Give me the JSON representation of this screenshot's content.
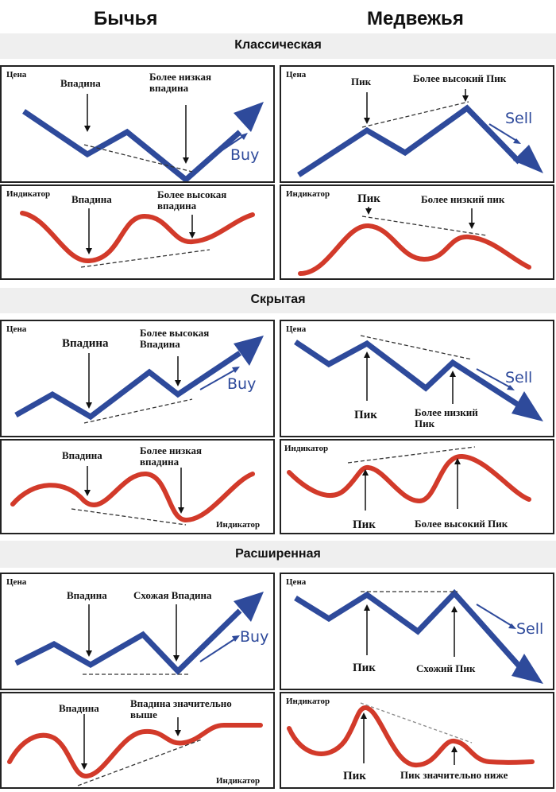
{
  "colors": {
    "price": "#2e4a9b",
    "indicator": "#d23a2a",
    "buy": "#2e4a9b",
    "sell": "#2e4a9b"
  },
  "columns": {
    "bull": "Бычья",
    "bear": "Медвежья"
  },
  "sections": {
    "classic": "Классическая",
    "hidden": "Скрытая",
    "extended": "Расширенная"
  },
  "panels": {
    "c_bull_price": {
      "tag": "Цена",
      "a1": "Впадина",
      "a2": "Более низкая впадина",
      "signal": "Buy"
    },
    "c_bull_ind": {
      "tag": "Индикатор",
      "a1": "Впадина",
      "a2": "Более высокая впадина"
    },
    "c_bear_price": {
      "tag": "Цена",
      "a1": "Пик",
      "a2": "Более высокий Пик",
      "signal": "Sell"
    },
    "c_bear_ind": {
      "tag": "Индикатор",
      "a1": "Пик",
      "a2": "Более низкий пик"
    },
    "h_bull_price": {
      "tag": "Цена",
      "a1": "Впадина",
      "a2": "Более высокая Впадина",
      "signal": "Buy"
    },
    "h_bull_ind": {
      "tag": "Индикатор",
      "a1": "Впадина",
      "a2": "Более низкая впадина"
    },
    "h_bear_price": {
      "tag": "Цена",
      "a1": "Пик",
      "a2": "Более низкий Пик",
      "signal": "Sell"
    },
    "h_bear_ind": {
      "tag": "Индикатор",
      "a1": "Пик",
      "a2": "Более высокий Пик"
    },
    "e_bull_price": {
      "tag": "Цена",
      "a1": "Впадина",
      "a2": "Схожая Впадина",
      "signal": "Buy"
    },
    "e_bull_ind": {
      "tag": "Индикатор",
      "a1": "Впадина",
      "a2": "Впадина значительно выше"
    },
    "e_bear_price": {
      "tag": "Цена",
      "a1": "Пик",
      "a2": "Схожий Пик",
      "signal": "Sell"
    },
    "e_bear_ind": {
      "tag": "Индикатор",
      "a1": "Пик",
      "a2": "Пик значительно ниже"
    }
  }
}
